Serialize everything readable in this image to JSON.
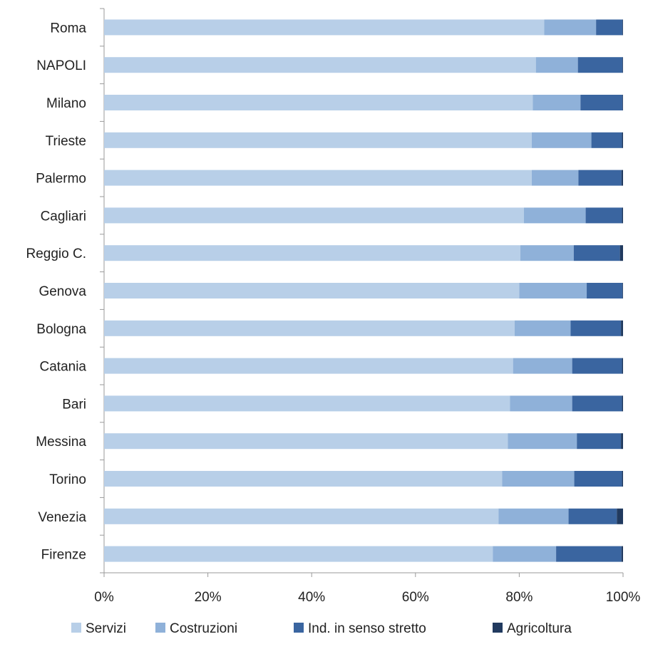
{
  "chart_data": {
    "type": "bar",
    "orientation": "horizontal",
    "stacked": true,
    "title": "",
    "xlabel": "",
    "ylabel": "",
    "xlim": [
      0,
      100
    ],
    "x_ticks": [
      "0%",
      "20%",
      "40%",
      "60%",
      "80%",
      "100%"
    ],
    "grid": false,
    "legend_position": "bottom",
    "categories": [
      "Roma",
      "NAPOLI",
      "Milano",
      "Trieste",
      "Palermo",
      "Cagliari",
      "Reggio C.",
      "Genova",
      "Bologna",
      "Catania",
      "Bari",
      "Messina",
      "Torino",
      "Venezia",
      "Firenze"
    ],
    "series": [
      {
        "name": "Servizi",
        "color": "#b8cfe8",
        "values": [
          84.8,
          83.2,
          82.6,
          82.4,
          82.4,
          80.9,
          80.2,
          80.0,
          79.1,
          78.8,
          78.2,
          77.8,
          76.7,
          76.0,
          74.9
        ]
      },
      {
        "name": "Costruzioni",
        "color": "#8fb1d9",
        "values": [
          10.0,
          8.1,
          9.2,
          11.5,
          9.0,
          11.9,
          10.3,
          13.0,
          10.8,
          11.4,
          12.0,
          13.3,
          13.9,
          13.5,
          12.2
        ]
      },
      {
        "name": "Ind. in senso stretto",
        "color": "#3a65a0",
        "values": [
          5.1,
          8.6,
          8.1,
          5.9,
          8.3,
          7.0,
          8.9,
          6.9,
          9.7,
          9.6,
          9.6,
          8.5,
          9.2,
          9.3,
          12.6
        ]
      },
      {
        "name": "Agricoltura",
        "color": "#213a5f",
        "values": [
          0.1,
          0.1,
          0.1,
          0.2,
          0.3,
          0.2,
          0.6,
          0.1,
          0.4,
          0.2,
          0.2,
          0.4,
          0.2,
          1.2,
          0.3
        ]
      }
    ]
  }
}
